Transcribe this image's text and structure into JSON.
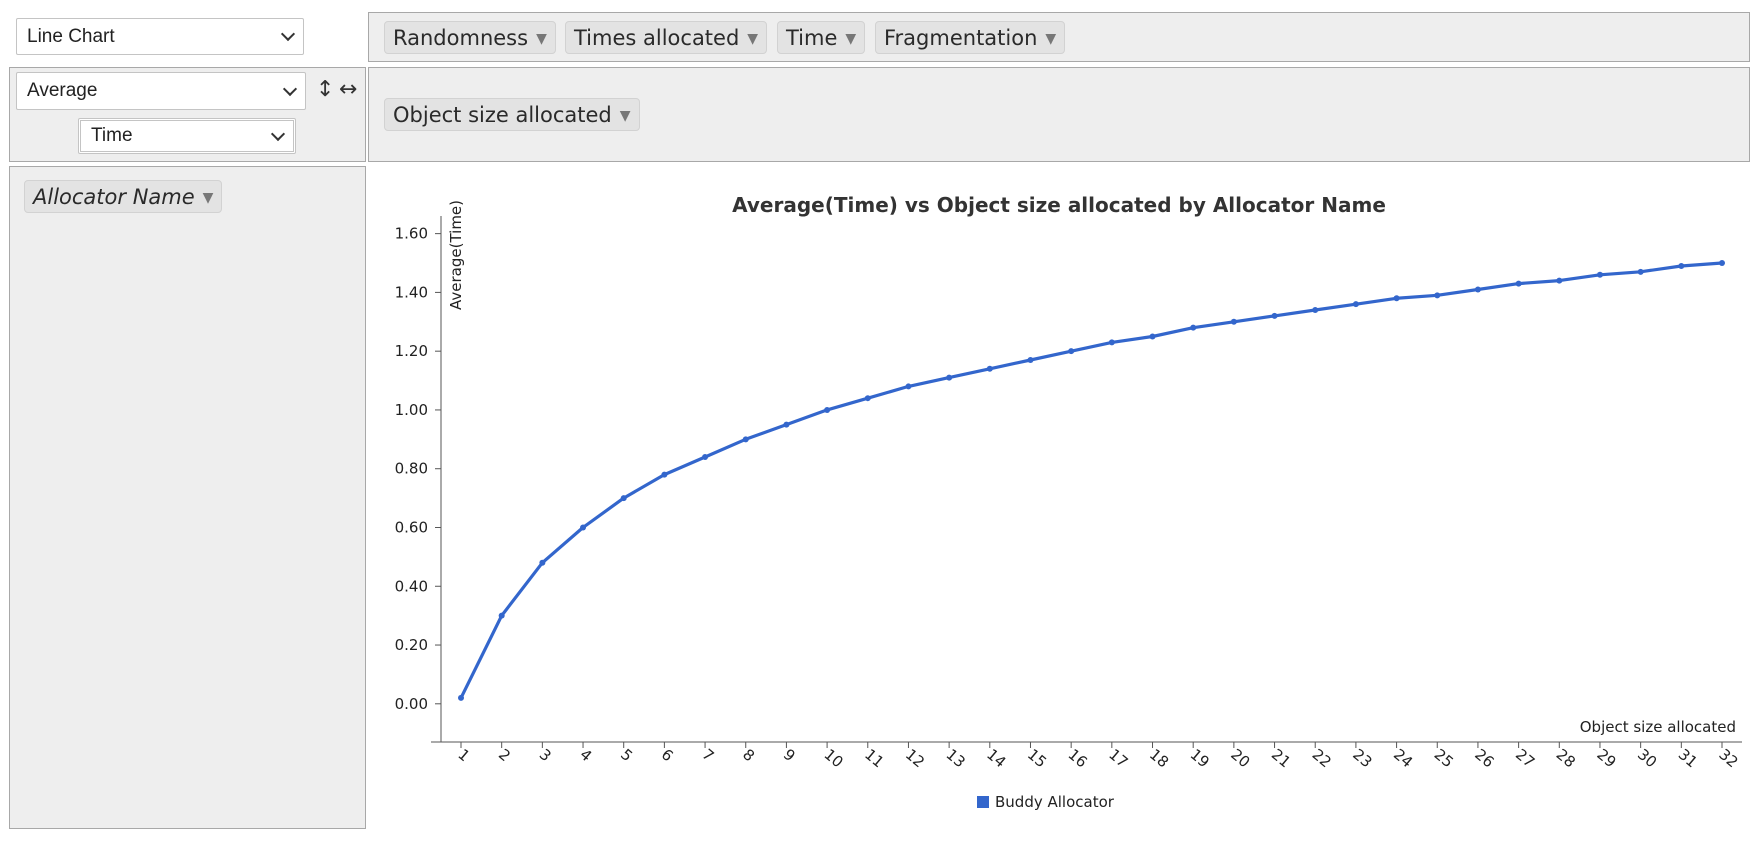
{
  "controls": {
    "renderer": "Line Chart",
    "aggregator": "Average",
    "aggregator_field": "Time",
    "sort_rows_icon": "vertical-arrows-icon",
    "sort_cols_icon": "horizontal-arrows-icon"
  },
  "unused_fields": [
    "Randomness",
    "Times allocated",
    "Time",
    "Fragmentation"
  ],
  "column_fields": [
    "Object size allocated"
  ],
  "row_fields": [
    "Allocator Name"
  ],
  "colors": {
    "panel_bg": "#eeeeee",
    "series": "#3366cc"
  },
  "chart_data": {
    "type": "line",
    "title": "Average(Time) vs Object size allocated by Allocator Name",
    "xlabel": "Object size allocated",
    "ylabel": "Average(Time)",
    "ylim": [
      -0.13,
      1.66
    ],
    "yticks": [
      0.0,
      0.2,
      0.4,
      0.6,
      0.8,
      1.0,
      1.2,
      1.4,
      1.6
    ],
    "ytick_labels": [
      "0.00",
      "0.20",
      "0.40",
      "0.60",
      "0.80",
      "1.00",
      "1.20",
      "1.40",
      "1.60"
    ],
    "x": [
      1,
      2,
      3,
      4,
      5,
      6,
      7,
      8,
      9,
      10,
      11,
      12,
      13,
      14,
      15,
      16,
      17,
      18,
      19,
      20,
      21,
      22,
      23,
      24,
      25,
      26,
      27,
      28,
      29,
      30,
      31,
      32
    ],
    "series": [
      {
        "name": "Buddy Allocator",
        "values": [
          0.02,
          0.3,
          0.48,
          0.6,
          0.7,
          0.78,
          0.84,
          0.9,
          0.95,
          1.0,
          1.04,
          1.08,
          1.11,
          1.14,
          1.17,
          1.2,
          1.23,
          1.25,
          1.28,
          1.3,
          1.32,
          1.34,
          1.36,
          1.38,
          1.39,
          1.41,
          1.43,
          1.44,
          1.46,
          1.47,
          1.49,
          1.5
        ]
      }
    ],
    "legend": "bottom",
    "grid": false
  }
}
